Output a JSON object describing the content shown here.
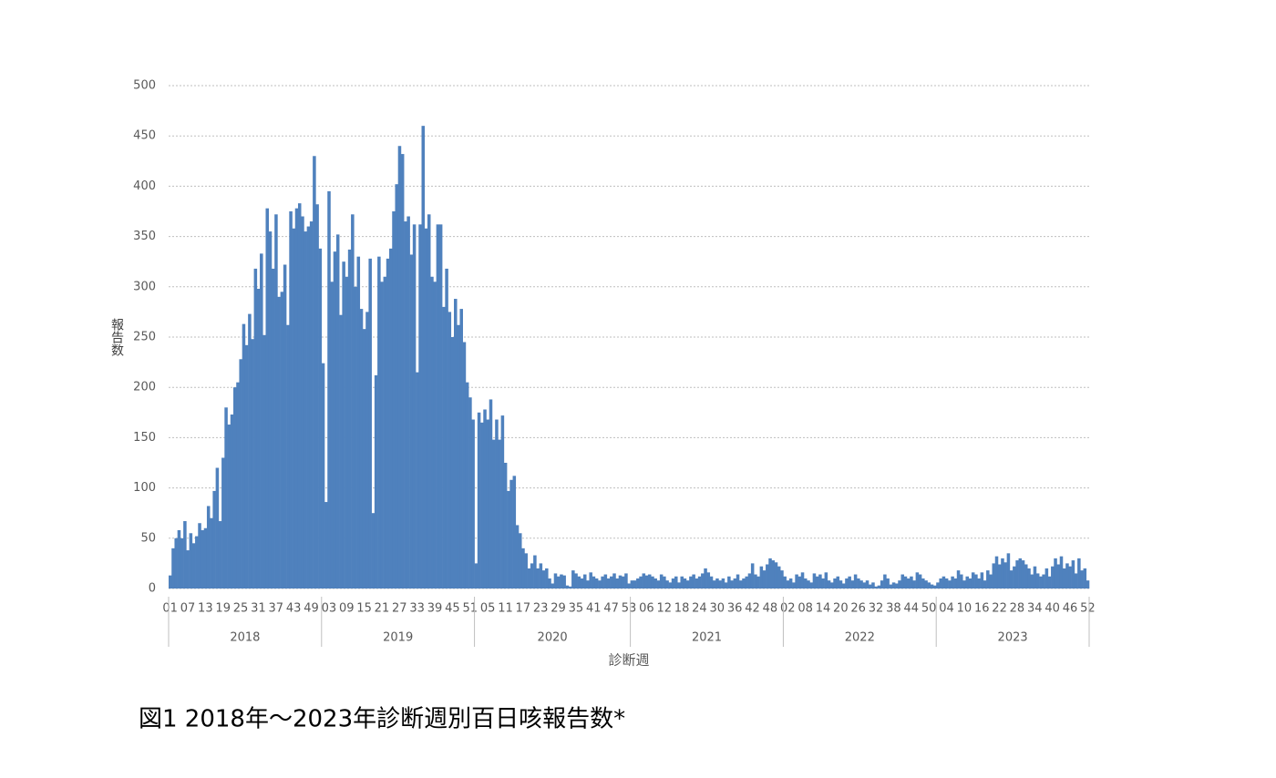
{
  "chart_data": {
    "type": "bar",
    "caption": "図1 2018年～2023年診断週別百日咳報告数*",
    "y_label": "報告数",
    "x_label": "診断週",
    "color": "#4f81bd",
    "grid": true,
    "ylim": [
      0,
      500
    ],
    "yticks": [
      0,
      50,
      100,
      150,
      200,
      250,
      300,
      350,
      400,
      450,
      500
    ],
    "years": [
      {
        "name": "2018",
        "weeks": 52
      },
      {
        "name": "2019",
        "weeks": 52
      },
      {
        "name": "2020",
        "weeks": 53
      },
      {
        "name": "2021",
        "weeks": 52
      },
      {
        "name": "2022",
        "weeks": 52
      },
      {
        "name": "2023",
        "weeks": 52
      }
    ],
    "categories": [
      "01",
      null,
      null,
      null,
      null,
      null,
      "07",
      null,
      null,
      null,
      null,
      null,
      "13",
      null,
      null,
      null,
      null,
      null,
      "19",
      null,
      null,
      null,
      null,
      null,
      "25",
      null,
      null,
      null,
      null,
      null,
      "31",
      null,
      null,
      null,
      null,
      null,
      "37",
      null,
      null,
      null,
      null,
      null,
      "43",
      null,
      null,
      null,
      null,
      null,
      "49",
      null,
      null,
      null,
      null,
      null,
      "03",
      null,
      null,
      null,
      null,
      null,
      "09",
      null,
      null,
      null,
      null,
      null,
      "15",
      null,
      null,
      null,
      null,
      null,
      "21",
      null,
      null,
      null,
      null,
      null,
      "27",
      null,
      null,
      null,
      null,
      null,
      "33",
      null,
      null,
      null,
      null,
      null,
      "39",
      null,
      null,
      null,
      null,
      null,
      "45",
      null,
      null,
      null,
      null,
      null,
      "51",
      null,
      null,
      null,
      null,
      null,
      "05",
      null,
      null,
      null,
      null,
      null,
      "11",
      null,
      null,
      null,
      null,
      null,
      "17",
      null,
      null,
      null,
      null,
      null,
      "23",
      null,
      null,
      null,
      null,
      null,
      "29",
      null,
      null,
      null,
      null,
      null,
      "35",
      null,
      null,
      null,
      null,
      null,
      "41",
      null,
      null,
      null,
      null,
      null,
      "47",
      null,
      null,
      null,
      null,
      null,
      "53",
      null,
      null,
      null,
      null,
      null,
      "06",
      null,
      null,
      null,
      null,
      null,
      "12",
      null,
      null,
      null,
      null,
      null,
      "18",
      null,
      null,
      null,
      null,
      null,
      "24",
      null,
      null,
      null,
      null,
      null,
      "30",
      null,
      null,
      null,
      null,
      null,
      "36",
      null,
      null,
      null,
      null,
      null,
      "42",
      null,
      null,
      null,
      null,
      null,
      "48",
      null,
      null,
      null,
      null,
      null,
      "02",
      null,
      null,
      null,
      null,
      null,
      "08",
      null,
      null,
      null,
      null,
      null,
      "14",
      null,
      null,
      null,
      null,
      null,
      "20",
      null,
      null,
      null,
      null,
      null,
      "26",
      null,
      null,
      null,
      null,
      null,
      "32",
      null,
      null,
      null,
      null,
      null,
      "38",
      null,
      null,
      null,
      null,
      null,
      "44",
      null,
      null,
      null,
      null,
      null,
      "50",
      null,
      null,
      null,
      null,
      null,
      "04",
      null,
      null,
      null,
      null,
      null,
      "10",
      null,
      null,
      null,
      null,
      null,
      "16",
      null,
      null,
      null,
      null,
      null,
      "22",
      null,
      null,
      null,
      null,
      null,
      "28",
      null,
      null,
      null,
      null,
      null,
      "34",
      null,
      null,
      null,
      null,
      null,
      "40",
      null,
      null,
      null,
      null,
      null,
      "46",
      null,
      null,
      null,
      null,
      null,
      "52"
    ],
    "values": [
      13,
      40,
      50,
      58,
      50,
      67,
      38,
      55,
      45,
      52,
      65,
      58,
      60,
      82,
      70,
      97,
      120,
      67,
      130,
      180,
      163,
      173,
      200,
      205,
      228,
      263,
      242,
      273,
      248,
      318,
      298,
      333,
      252,
      378,
      355,
      318,
      372,
      290,
      295,
      322,
      262,
      375,
      358,
      378,
      383,
      370,
      355,
      360,
      365,
      430,
      382,
      338,
      224,
      86,
      395,
      305,
      335,
      352,
      272,
      325,
      310,
      337,
      372,
      300,
      330,
      278,
      258,
      275,
      328,
      75,
      212,
      330,
      305,
      310,
      328,
      338,
      375,
      402,
      440,
      432,
      365,
      370,
      332,
      362,
      215,
      362,
      460,
      358,
      372,
      310,
      305,
      362,
      362,
      280,
      318,
      275,
      250,
      288,
      262,
      278,
      245,
      205,
      190,
      168,
      25,
      175,
      165,
      178,
      168,
      188,
      148,
      168,
      148,
      172,
      125,
      97,
      108,
      112,
      63,
      55,
      40,
      35,
      20,
      25,
      33,
      20,
      25,
      18,
      20,
      10,
      5,
      15,
      12,
      14,
      13,
      3,
      2,
      18,
      15,
      12,
      10,
      14,
      8,
      16,
      12,
      10,
      8,
      12,
      14,
      10,
      12,
      15,
      10,
      13,
      12,
      15,
      5,
      8,
      8,
      10,
      12,
      15,
      13,
      14,
      12,
      10,
      8,
      14,
      12,
      8,
      6,
      10,
      12,
      6,
      12,
      10,
      8,
      12,
      14,
      10,
      12,
      15,
      20,
      16,
      12,
      8,
      10,
      8,
      10,
      6,
      12,
      8,
      10,
      14,
      8,
      10,
      12,
      15,
      25,
      14,
      12,
      22,
      18,
      24,
      30,
      28,
      26,
      22,
      18,
      12,
      8,
      10,
      6,
      14,
      12,
      16,
      10,
      8,
      6,
      15,
      12,
      14,
      10,
      16,
      8,
      6,
      10,
      12,
      8,
      5,
      10,
      12,
      8,
      14,
      10,
      8,
      6,
      8,
      4,
      6,
      2,
      3,
      8,
      14,
      10,
      4,
      6,
      5,
      8,
      14,
      12,
      10,
      12,
      8,
      16,
      14,
      10,
      8,
      6,
      4,
      3,
      6,
      10,
      12,
      10,
      8,
      12,
      10,
      18,
      14,
      8,
      12,
      10,
      16,
      14,
      10,
      16,
      8,
      18,
      14,
      25,
      32,
      24,
      30,
      26,
      35,
      18,
      22,
      28,
      30,
      28,
      24,
      20,
      14,
      22,
      15,
      12,
      14,
      20,
      12,
      22,
      30,
      24,
      32,
      20,
      25,
      22,
      28,
      15,
      30,
      18,
      20,
      8
    ]
  }
}
